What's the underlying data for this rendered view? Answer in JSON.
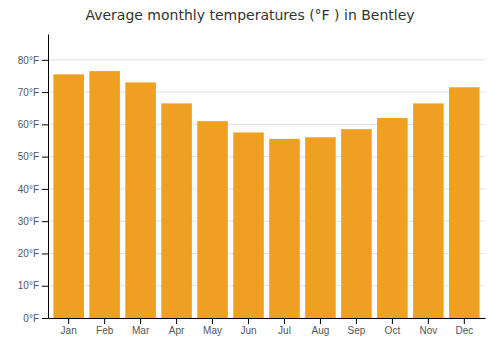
{
  "chart_data": {
    "type": "bar",
    "title": "Average monthly temperatures (°F ) in Bentley",
    "categories": [
      "Jan",
      "Feb",
      "Mar",
      "Apr",
      "May",
      "Jun",
      "Jul",
      "Aug",
      "Sep",
      "Oct",
      "Nov",
      "Dec"
    ],
    "values": [
      75.5,
      76.5,
      73.0,
      66.5,
      61.0,
      57.5,
      55.5,
      56.0,
      58.5,
      62.0,
      66.5,
      71.5
    ],
    "color": "#F0A020",
    "ylim": [
      0,
      88
    ],
    "yticks": [
      {
        "value": 0,
        "label": "0°F"
      },
      {
        "value": 10,
        "label": "10°F"
      },
      {
        "value": 20,
        "label": "20°F"
      },
      {
        "value": 30,
        "label": "30°F"
      },
      {
        "value": 40,
        "label": "40°F"
      },
      {
        "value": 50,
        "label": "50°F"
      },
      {
        "value": 60,
        "label": "60°F"
      },
      {
        "value": 70,
        "label": "70°F"
      },
      {
        "value": 80,
        "label": "80°F"
      }
    ],
    "grid": true
  }
}
